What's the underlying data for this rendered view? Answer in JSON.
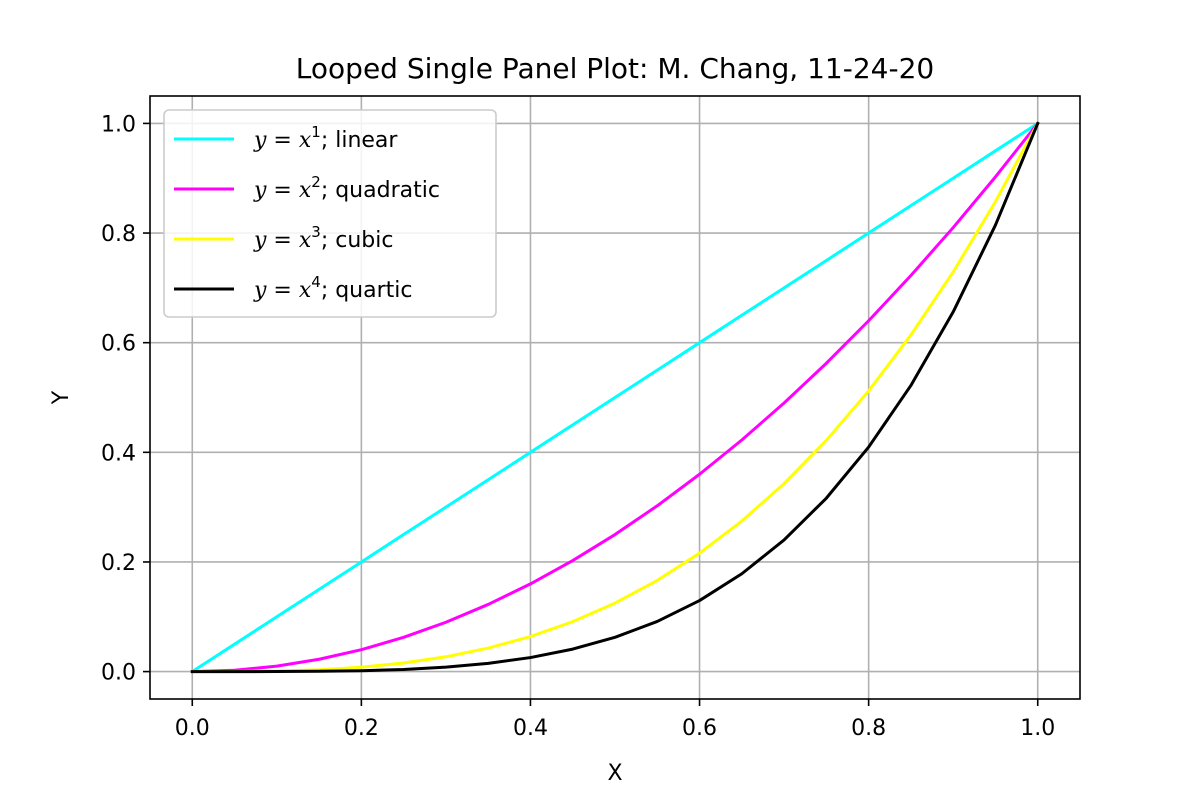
{
  "chart_data": {
    "type": "line",
    "title": "Looped Single Panel Plot: M. Chang, 11-24-20",
    "xlabel": "X",
    "ylabel": "Y",
    "xlim": [
      -0.05,
      1.05
    ],
    "ylim": [
      -0.05,
      1.05
    ],
    "xticks": [
      0.0,
      0.2,
      0.4,
      0.6,
      0.8,
      1.0
    ],
    "yticks": [
      0.0,
      0.2,
      0.4,
      0.6,
      0.8,
      1.0
    ],
    "xtick_labels": [
      "0.0",
      "0.2",
      "0.4",
      "0.6",
      "0.8",
      "1.0"
    ],
    "ytick_labels": [
      "0.0",
      "0.2",
      "0.4",
      "0.6",
      "0.8",
      "1.0"
    ],
    "grid": true,
    "legend_position": "upper-left",
    "x": [
      0.0,
      0.05,
      0.1,
      0.15,
      0.2,
      0.25,
      0.3,
      0.35,
      0.4,
      0.45,
      0.5,
      0.55,
      0.6,
      0.65,
      0.7,
      0.75,
      0.8,
      0.85,
      0.9,
      0.95,
      1.0
    ],
    "series": [
      {
        "name_prefix": "y = x",
        "name_exp": "1",
        "name_suffix": "; linear",
        "color": "#00ffff",
        "values": [
          0.0,
          0.05,
          0.1,
          0.15,
          0.2,
          0.25,
          0.3,
          0.35,
          0.4,
          0.45,
          0.5,
          0.55,
          0.6,
          0.65,
          0.7,
          0.75,
          0.8,
          0.85,
          0.9,
          0.95,
          1.0
        ]
      },
      {
        "name_prefix": "y = x",
        "name_exp": "2",
        "name_suffix": "; quadratic",
        "color": "#ff00ff",
        "values": [
          0.0,
          0.0025,
          0.01,
          0.0225,
          0.04,
          0.0625,
          0.09,
          0.1225,
          0.16,
          0.2025,
          0.25,
          0.3025,
          0.36,
          0.4225,
          0.49,
          0.5625,
          0.64,
          0.7225,
          0.81,
          0.9025,
          1.0
        ]
      },
      {
        "name_prefix": "y = x",
        "name_exp": "3",
        "name_suffix": "; cubic",
        "color": "#ffff00",
        "values": [
          0.0,
          0.000125,
          0.001,
          0.003375,
          0.008,
          0.015625,
          0.027,
          0.042875,
          0.064,
          0.091125,
          0.125,
          0.166375,
          0.216,
          0.274625,
          0.343,
          0.421875,
          0.512,
          0.614125,
          0.729,
          0.857375,
          1.0
        ]
      },
      {
        "name_prefix": "y = x",
        "name_exp": "4",
        "name_suffix": "; quartic",
        "color": "#000000",
        "values": [
          0.0,
          6.25e-06,
          0.0001,
          0.00050625,
          0.0016,
          0.00390625,
          0.0081,
          0.01500625,
          0.0256,
          0.04100625,
          0.0625,
          0.09150625,
          0.1296,
          0.17850625,
          0.2401,
          0.31640625,
          0.4096,
          0.52200625,
          0.6561,
          0.81450625,
          1.0
        ]
      }
    ]
  }
}
